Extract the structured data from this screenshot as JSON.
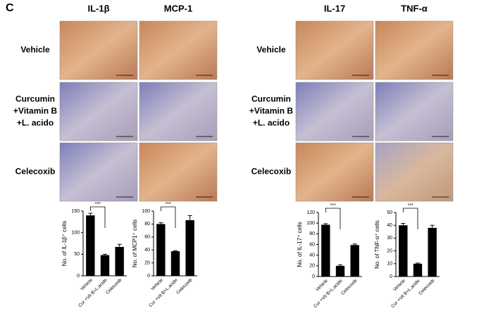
{
  "panel_label": "C",
  "groups": [
    {
      "columns": [
        "IL-1β",
        "MCP-1"
      ],
      "rows": [
        [
          "Vehicle"
        ],
        [
          "Curcumin",
          "+Vitamin B",
          "+L. acido"
        ],
        [
          "Celecoxib"
        ]
      ]
    },
    {
      "columns": [
        "IL-17",
        "TNF-α"
      ],
      "rows": [
        [
          "Vehicle"
        ],
        [
          "Curcumin",
          "+Vitamin B",
          "+L. acido"
        ],
        [
          "Celecoxib"
        ]
      ]
    }
  ],
  "chart_data": [
    {
      "type": "bar",
      "ylabel": "No. of IL-1β⁺ cells",
      "categories": [
        "Vehicle",
        "Cur +Vit B+L.acido",
        "Celecoxib"
      ],
      "values": [
        140,
        48,
        67
      ],
      "errors": [
        5,
        2,
        6
      ],
      "color": "#000000",
      "ylim": [
        0,
        150
      ],
      "yticks": [
        0,
        50,
        100,
        150
      ],
      "significance": "***"
    },
    {
      "type": "bar",
      "ylabel": "No. of MCP1⁺ cells",
      "categories": [
        "Vehicle",
        "Cur +Vit B+L.acido",
        "Celecoxib"
      ],
      "values": [
        80,
        38,
        86
      ],
      "errors": [
        2,
        1,
        7
      ],
      "color": "#000000",
      "ylim": [
        0,
        100
      ],
      "yticks": [
        0,
        20,
        40,
        60,
        80,
        100
      ],
      "significance": "***"
    },
    {
      "type": "bar",
      "ylabel": "No. of IL-17⁺ cells",
      "categories": [
        "Vehicle",
        "Cur +Vit B+L.acido",
        "Celecoxib"
      ],
      "values": [
        97,
        20,
        59
      ],
      "errors": [
        2,
        2,
        2
      ],
      "color": "#000000",
      "ylim": [
        0,
        120
      ],
      "yticks": [
        0,
        20,
        40,
        60,
        80,
        100,
        120
      ],
      "significance": "***"
    },
    {
      "type": "bar",
      "ylabel": "No. of TNF-α⁺ cells",
      "categories": [
        "Vehicle",
        "Cur +Vit B+L.acido",
        "Celecoxib"
      ],
      "values": [
        40,
        10,
        38
      ],
      "errors": [
        1.5,
        0.5,
        2
      ],
      "color": "#000000",
      "ylim": [
        0,
        50
      ],
      "yticks": [
        0,
        10,
        20,
        30,
        40,
        50
      ],
      "significance": "***"
    }
  ]
}
